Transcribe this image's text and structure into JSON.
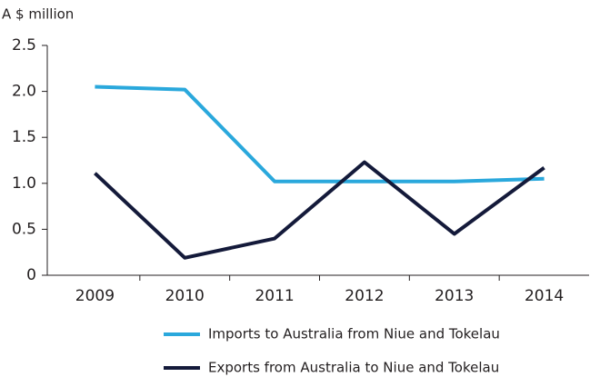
{
  "chart_data": {
    "type": "line",
    "y_axis_label": "A $ million",
    "categories": [
      "2009",
      "2010",
      "2011",
      "2012",
      "2013",
      "2014"
    ],
    "series": [
      {
        "name": "Imports to Australia from Niue and Tokelau",
        "color": "#2aa8dc",
        "values": [
          2.05,
          2.02,
          1.02,
          1.02,
          1.02,
          1.05
        ]
      },
      {
        "name": "Exports from Australia to Niue and Tokelau",
        "color": "#141a3a",
        "values": [
          1.11,
          0.19,
          0.4,
          1.23,
          0.45,
          1.17
        ]
      }
    ],
    "ylim": [
      0,
      2.5
    ],
    "yticks": [
      0,
      0.5,
      {
        "value": 1,
        "label": "1.0"
      },
      1.5,
      {
        "value": 2,
        "label": "2.0"
      },
      2.5
    ],
    "grid": false
  }
}
